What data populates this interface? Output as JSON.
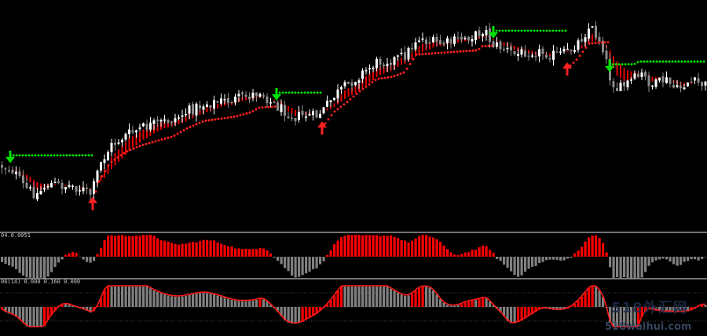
{
  "panels": {
    "sub1_label": "04.0.0051",
    "sub2_label": "06(14) 0.000 0.160 0.000"
  },
  "watermark": {
    "line1": "518外汇网",
    "line2": "518waihui.com"
  },
  "colors": {
    "background": "#000000",
    "bull_candle": "#ffffff",
    "bear_candle": "#8c8c8c",
    "ma_band": "#ff0000",
    "trail_up": "#ff2020",
    "trail_down": "#00e000",
    "histogram_up": "#ff0000",
    "histogram_down": "#808080",
    "separator": "#9a9a9a"
  },
  "chart_data": [
    {
      "type": "candlestick",
      "panel": "main",
      "title": "",
      "price_path": [
        [
          0,
          0.72
        ],
        [
          15,
          0.74
        ],
        [
          30,
          0.82
        ],
        [
          45,
          0.85
        ],
        [
          60,
          0.8
        ],
        [
          75,
          0.81
        ],
        [
          90,
          0.81
        ],
        [
          105,
          0.83
        ],
        [
          115,
          0.85
        ],
        [
          125,
          0.72
        ],
        [
          140,
          0.63
        ],
        [
          160,
          0.58
        ],
        [
          180,
          0.55
        ],
        [
          200,
          0.53
        ],
        [
          220,
          0.51
        ],
        [
          240,
          0.47
        ],
        [
          260,
          0.44
        ],
        [
          280,
          0.43
        ],
        [
          300,
          0.42
        ],
        [
          320,
          0.4
        ],
        [
          330,
          0.38
        ],
        [
          345,
          0.44
        ],
        [
          360,
          0.47
        ],
        [
          375,
          0.5
        ],
        [
          390,
          0.49
        ],
        [
          400,
          0.5
        ],
        [
          410,
          0.47
        ],
        [
          425,
          0.4
        ],
        [
          440,
          0.36
        ],
        [
          460,
          0.3
        ],
        [
          480,
          0.25
        ],
        [
          500,
          0.24
        ],
        [
          515,
          0.22
        ],
        [
          530,
          0.14
        ],
        [
          545,
          0.16
        ],
        [
          560,
          0.17
        ],
        [
          575,
          0.16
        ],
        [
          590,
          0.14
        ],
        [
          605,
          0.13
        ],
        [
          615,
          0.1
        ],
        [
          625,
          0.17
        ],
        [
          640,
          0.19
        ],
        [
          655,
          0.22
        ],
        [
          670,
          0.2
        ],
        [
          690,
          0.21
        ],
        [
          705,
          0.22
        ],
        [
          720,
          0.21
        ],
        [
          735,
          0.16
        ],
        [
          750,
          0.09
        ],
        [
          765,
          0.17
        ],
        [
          775,
          0.32
        ],
        [
          785,
          0.38
        ],
        [
          800,
          0.34
        ],
        [
          815,
          0.31
        ],
        [
          830,
          0.36
        ],
        [
          845,
          0.33
        ],
        [
          860,
          0.38
        ],
        [
          875,
          0.34
        ],
        [
          890,
          0.35
        ],
        [
          900,
          0.36
        ]
      ],
      "signals": [
        {
          "type": "sell",
          "x": 13
        },
        {
          "type": "buy",
          "x": 118
        },
        {
          "type": "sell",
          "x": 352
        },
        {
          "type": "buy",
          "x": 410
        },
        {
          "type": "sell",
          "x": 628
        },
        {
          "type": "buy",
          "x": 722
        },
        {
          "type": "sell",
          "x": 776
        }
      ]
    },
    {
      "type": "histogram",
      "panel": "sub1",
      "title": "",
      "zero_line": "middle"
    },
    {
      "type": "histogram_with_line",
      "panel": "sub2",
      "title": "",
      "reference_levels": 3
    }
  ]
}
